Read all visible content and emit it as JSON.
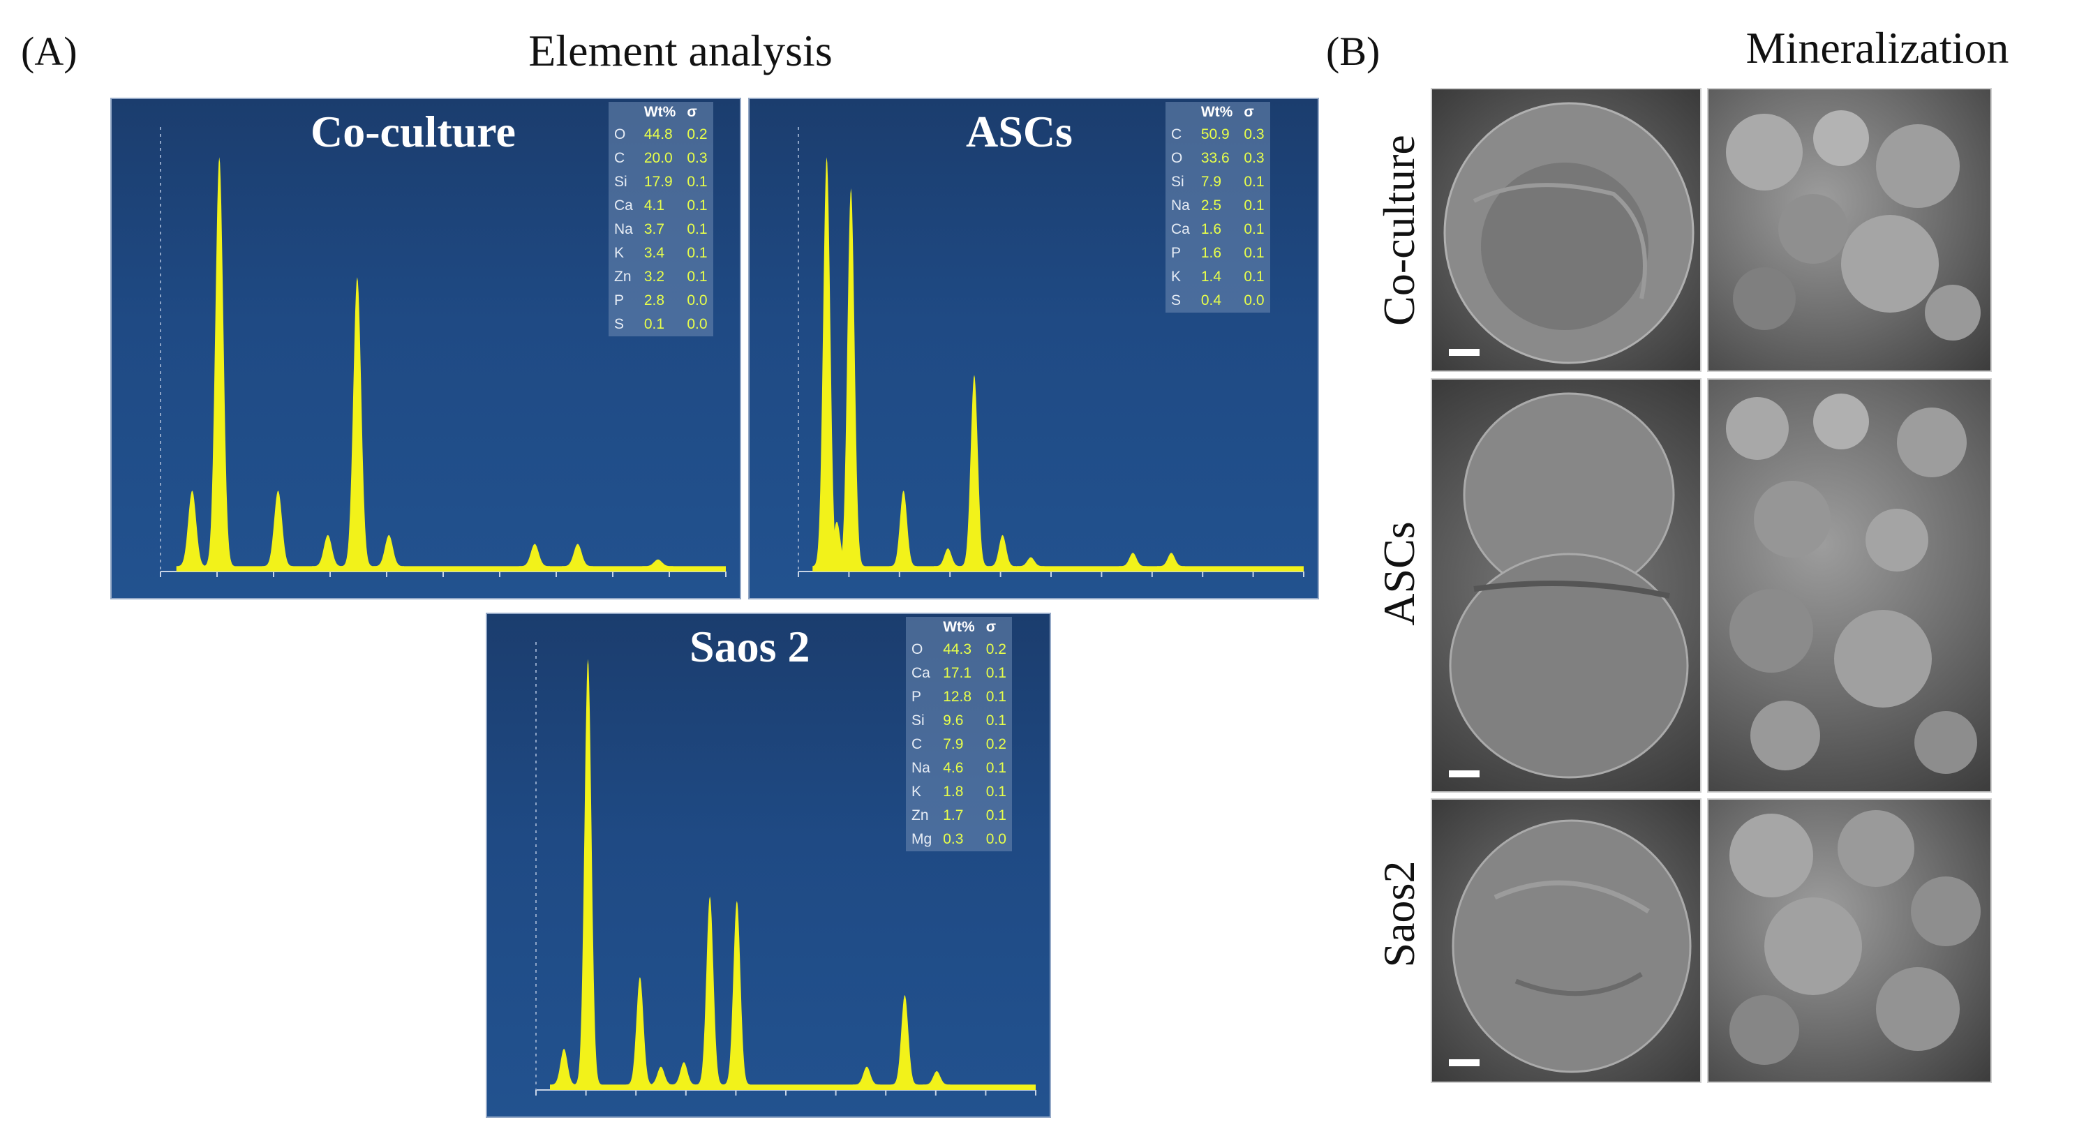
{
  "panel_a": {
    "label": "(A)",
    "title": "Element analysis",
    "spectra": [
      {
        "name": "Co-culture",
        "table_header": {
          "wt": "Wt%",
          "sigma": "σ"
        },
        "rows": [
          {
            "el": "O",
            "wt": "44.8",
            "s": "0.2"
          },
          {
            "el": "C",
            "wt": "20.0",
            "s": "0.3"
          },
          {
            "el": "Si",
            "wt": "17.9",
            "s": "0.1"
          },
          {
            "el": "Ca",
            "wt": "4.1",
            "s": "0.1"
          },
          {
            "el": "Na",
            "wt": "3.7",
            "s": "0.1"
          },
          {
            "el": "K",
            "wt": "3.4",
            "s": "0.1"
          },
          {
            "el": "Zn",
            "wt": "3.2",
            "s": "0.1"
          },
          {
            "el": "P",
            "wt": "2.8",
            "s": "0.0"
          },
          {
            "el": "S",
            "wt": "0.1",
            "s": "0.0"
          }
        ],
        "peaks": [
          {
            "e": 0.28,
            "h": 0.17
          },
          {
            "e": 0.52,
            "h": 0.92
          },
          {
            "e": 1.04,
            "h": 0.17
          },
          {
            "e": 1.48,
            "h": 0.07
          },
          {
            "e": 1.74,
            "h": 0.65
          },
          {
            "e": 2.02,
            "h": 0.07
          },
          {
            "e": 3.31,
            "h": 0.05
          },
          {
            "e": 3.69,
            "h": 0.05
          },
          {
            "e": 4.4,
            "h": 0.015
          }
        ]
      },
      {
        "name": "ASCs",
        "table_header": {
          "wt": "Wt%",
          "sigma": "σ"
        },
        "rows": [
          {
            "el": "C",
            "wt": "50.9",
            "s": "0.3"
          },
          {
            "el": "O",
            "wt": "33.6",
            "s": "0.3"
          },
          {
            "el": "Si",
            "wt": "7.9",
            "s": "0.1"
          },
          {
            "el": "Na",
            "wt": "2.5",
            "s": "0.1"
          },
          {
            "el": "Ca",
            "wt": "1.6",
            "s": "0.1"
          },
          {
            "el": "P",
            "wt": "1.6",
            "s": "0.1"
          },
          {
            "el": "K",
            "wt": "1.4",
            "s": "0.1"
          },
          {
            "el": "S",
            "wt": "0.4",
            "s": "0.0"
          }
        ],
        "peaks": [
          {
            "e": 0.28,
            "h": 0.92
          },
          {
            "e": 0.38,
            "h": 0.1
          },
          {
            "e": 0.52,
            "h": 0.85
          },
          {
            "e": 1.04,
            "h": 0.17
          },
          {
            "e": 1.48,
            "h": 0.04
          },
          {
            "e": 1.74,
            "h": 0.43
          },
          {
            "e": 2.02,
            "h": 0.07
          },
          {
            "e": 2.3,
            "h": 0.02
          },
          {
            "e": 3.31,
            "h": 0.03
          },
          {
            "e": 3.69,
            "h": 0.03
          }
        ]
      },
      {
        "name": "Saos 2",
        "table_header": {
          "wt": "Wt%",
          "sigma": "σ"
        },
        "rows": [
          {
            "el": "O",
            "wt": "44.3",
            "s": "0.2"
          },
          {
            "el": "Ca",
            "wt": "17.1",
            "s": "0.1"
          },
          {
            "el": "P",
            "wt": "12.8",
            "s": "0.1"
          },
          {
            "el": "Si",
            "wt": "9.6",
            "s": "0.1"
          },
          {
            "el": "C",
            "wt": "7.9",
            "s": "0.2"
          },
          {
            "el": "Na",
            "wt": "4.6",
            "s": "0.1"
          },
          {
            "el": "K",
            "wt": "1.8",
            "s": "0.1"
          },
          {
            "el": "Zn",
            "wt": "1.7",
            "s": "0.1"
          },
          {
            "el": "Mg",
            "wt": "0.3",
            "s": "0.0"
          }
        ],
        "peaks": [
          {
            "e": 0.28,
            "h": 0.08
          },
          {
            "e": 0.52,
            "h": 0.95
          },
          {
            "e": 1.04,
            "h": 0.24
          },
          {
            "e": 1.25,
            "h": 0.04
          },
          {
            "e": 1.48,
            "h": 0.05
          },
          {
            "e": 1.74,
            "h": 0.42
          },
          {
            "e": 2.01,
            "h": 0.41
          },
          {
            "e": 3.31,
            "h": 0.04
          },
          {
            "e": 3.69,
            "h": 0.2
          },
          {
            "e": 4.01,
            "h": 0.03
          }
        ]
      }
    ]
  },
  "panel_b": {
    "label": "(B)",
    "title": "Mineralization",
    "rows": [
      {
        "label": "Co-culture"
      },
      {
        "label": "ASCs"
      },
      {
        "label": "Saos2"
      }
    ]
  },
  "colors": {
    "spectrum_fill": "#f2f21a",
    "plot_bg": "#1f4a84",
    "table_value": "#e8ff4a"
  }
}
